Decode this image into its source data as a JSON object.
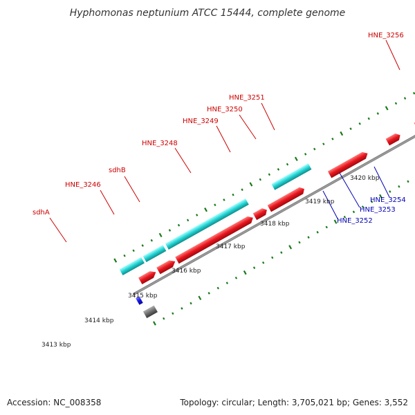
{
  "title": "Hyphomonas neptunium ATCC 15444, complete genome",
  "footer": {
    "accession": "Accession: NC_008358",
    "stats": "Topology: circular; Length: 3,705,021 bp; Genes: 3,552"
  },
  "colors": {
    "forward_gene": "#e8141c",
    "reverse_gene": "#1414e6",
    "forward_other": "#22d3d3",
    "reverse_other": "#6e6e6e",
    "backbone": "#8a8a8a",
    "tick": "#1a7a1a",
    "label_forward": "#cc0000",
    "label_reverse": "#0000b3"
  },
  "ticks": [
    {
      "label": "3413 kbp"
    },
    {
      "label": "3414 kbp"
    },
    {
      "label": "3415 kbp"
    },
    {
      "label": "3416 kbp"
    },
    {
      "label": "3417 kbp"
    },
    {
      "label": "3418 kbp"
    },
    {
      "label": "3419 kbp"
    },
    {
      "label": "3420 kbp"
    }
  ],
  "gene_labels": [
    {
      "name": "sdhA",
      "strand": "forward"
    },
    {
      "name": "HNE_3246",
      "strand": "forward"
    },
    {
      "name": "sdhB",
      "strand": "forward"
    },
    {
      "name": "HNE_3248",
      "strand": "forward"
    },
    {
      "name": "HNE_3249",
      "strand": "forward"
    },
    {
      "name": "HNE_3250",
      "strand": "forward"
    },
    {
      "name": "HNE_3251",
      "strand": "forward"
    },
    {
      "name": "HNE_3256",
      "strand": "forward"
    },
    {
      "name": "HNE_3252",
      "strand": "reverse"
    },
    {
      "name": "HNE_3253",
      "strand": "reverse"
    },
    {
      "name": "HNE_3254",
      "strand": "reverse"
    }
  ]
}
